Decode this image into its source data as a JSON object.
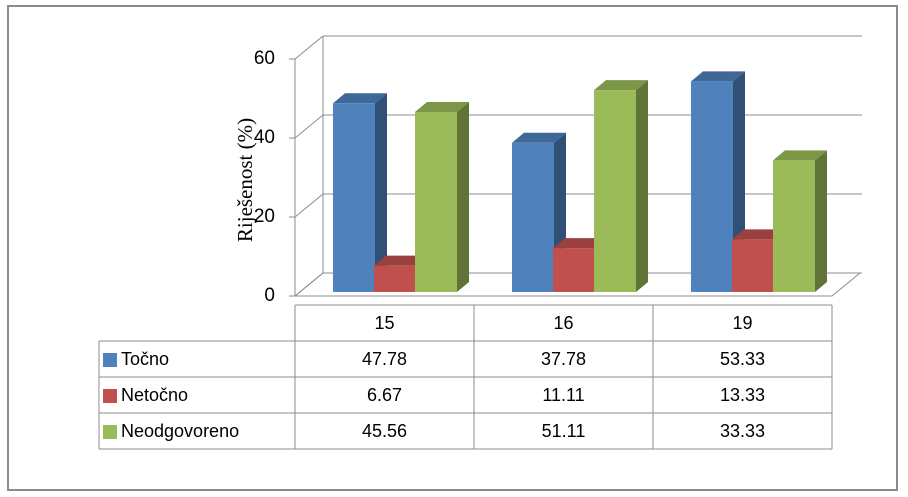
{
  "chart_data": {
    "type": "bar",
    "title": "",
    "xlabel": "",
    "ylabel": "Riješenost (%)",
    "ylim": [
      0,
      60
    ],
    "yticks": [
      0,
      20,
      40,
      60
    ],
    "grid": true,
    "legend": "data-table",
    "categories": [
      "15",
      "16",
      "19"
    ],
    "series": [
      {
        "name": "Točno",
        "values": [
          "47.78",
          "37.78",
          "53.33"
        ],
        "color": "#4F81BD"
      },
      {
        "name": "Netočno",
        "values": [
          "6.67",
          "11.11",
          "13.33"
        ],
        "color": "#C0504D"
      },
      {
        "name": "Neodgovoreno",
        "values": [
          "45.56",
          "51.11",
          "33.33"
        ],
        "color": "#9BBB59"
      }
    ]
  }
}
